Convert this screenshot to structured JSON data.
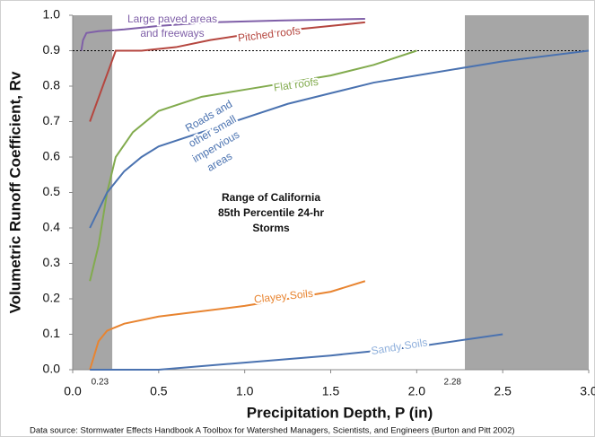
{
  "chart_data": {
    "type": "line",
    "xlabel": "Precipitation Depth, P (in)",
    "ylabel": "Volumetric Runoff Coefficient, Rv",
    "xlim": [
      0,
      3.0
    ],
    "ylim": [
      0,
      1.0
    ],
    "xticks": [
      {
        "value": 0,
        "label": "0.0"
      },
      0.5,
      {
        "value": 1,
        "label": "1.0"
      },
      1.5,
      {
        "value": 2,
        "label": "2.0"
      },
      2.5,
      {
        "value": 3,
        "label": "3.0"
      }
    ],
    "yticks": [
      {
        "value": 0,
        "label": "0.0"
      },
      0.1,
      0.2,
      0.3,
      0.4,
      0.5,
      0.6,
      0.7,
      0.8,
      0.9,
      {
        "value": 1,
        "label": "1.0"
      }
    ],
    "range_marks": [
      0.23,
      2.28
    ],
    "shade_color": "#a6a6a6",
    "reference_line": 0.9,
    "series": [
      {
        "name": [
          "Large paved areas",
          "and freeways"
        ],
        "color": "#7f5fa8",
        "x": [
          0.05,
          0.06,
          0.08,
          0.15,
          0.3,
          0.5,
          0.8,
          1.2,
          1.7
        ],
        "values": [
          0.9,
          0.93,
          0.95,
          0.955,
          0.96,
          0.97,
          0.98,
          0.985,
          0.99
        ]
      },
      {
        "name": [
          "Pitched roofs"
        ],
        "color": "#b5463f",
        "x": [
          0.1,
          0.25,
          0.4,
          0.6,
          0.8,
          1.0,
          1.3,
          1.7
        ],
        "values": [
          0.7,
          0.9,
          0.9,
          0.91,
          0.93,
          0.945,
          0.96,
          0.98
        ]
      },
      {
        "name": [
          "Flat roofs"
        ],
        "color": "#82ab4e",
        "x": [
          0.1,
          0.15,
          0.2,
          0.25,
          0.35,
          0.5,
          0.75,
          1.0,
          1.25,
          1.5,
          1.75,
          2.0
        ],
        "values": [
          0.25,
          0.35,
          0.5,
          0.6,
          0.67,
          0.73,
          0.77,
          0.79,
          0.81,
          0.83,
          0.86,
          0.9
        ]
      },
      {
        "name": [
          "Roads and",
          "other small",
          "impervious",
          "areas"
        ],
        "color": "#4a72b0",
        "x": [
          0.1,
          0.2,
          0.3,
          0.4,
          0.5,
          0.75,
          1.0,
          1.25,
          1.5,
          1.75,
          2.0,
          2.5,
          3.0
        ],
        "values": [
          0.4,
          0.5,
          0.56,
          0.6,
          0.63,
          0.67,
          0.71,
          0.75,
          0.78,
          0.81,
          0.83,
          0.87,
          0.9
        ]
      },
      {
        "name": [
          "Clayey Soils"
        ],
        "color": "#e88430",
        "x": [
          0.1,
          0.15,
          0.2,
          0.3,
          0.5,
          1.0,
          1.5,
          1.7
        ],
        "values": [
          0.0,
          0.08,
          0.11,
          0.13,
          0.15,
          0.18,
          0.22,
          0.25
        ]
      },
      {
        "name": [
          "Sandy Soils"
        ],
        "color": "#4a72b0",
        "x": [
          0.1,
          0.5,
          1.0,
          1.5,
          2.0,
          2.5
        ],
        "values": [
          0.0,
          0.0,
          0.02,
          0.04,
          0.065,
          0.1
        ]
      }
    ],
    "annotation": [
      "Range of California",
      "85th Percentile 24-hr",
      "Storms"
    ],
    "source": "Data source: Stormwater Effects Handbook A Toolbox for Watershed Managers, Scientists, and Engineers (Burton and Pitt 2002)"
  }
}
